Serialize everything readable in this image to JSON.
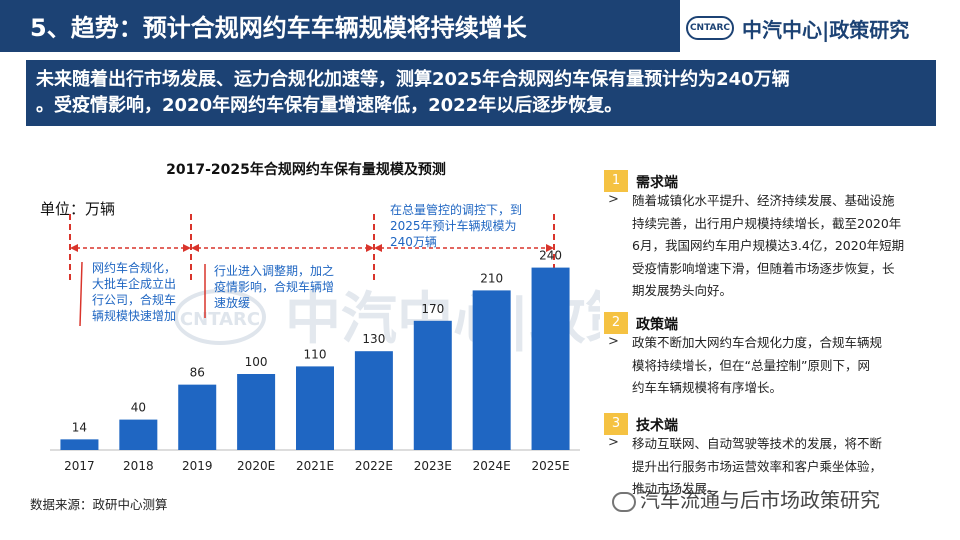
{
  "header": {
    "title": "5、趋势：预计合规网约车车辆规模将持续增长",
    "logo_badge": "CNTARC",
    "logo_text": "中汽中心|政策研究"
  },
  "summary": {
    "line1": "未来随着出行市场发展、运力合规化加速等，测算2025年合规网约车保有量预计约为240万辆",
    "line2": "。受疫情影响，2020年网约车保有量增速降低，2022年以后逐步恢复。"
  },
  "chart_data": {
    "type": "bar",
    "title": "2017-2025年合规网约车保有量规模及预测",
    "unit_label": "单位：万辆",
    "categories": [
      "2017",
      "2018",
      "2019",
      "2020E",
      "2021E",
      "2022E",
      "2023E",
      "2024E",
      "2025E"
    ],
    "values": [
      14,
      40,
      86,
      100,
      110,
      130,
      170,
      210,
      240
    ],
    "ylim": [
      0,
      250
    ],
    "bar_color": "#1f66c2",
    "watermark": "中汽中心|政策研究",
    "watermark_badge": "CNTARC",
    "annotations": [
      {
        "id": "phase1",
        "lines": [
          "网约车合规化，",
          "大批车企成立出",
          "行公司，合规车",
          "辆规模快速增加"
        ]
      },
      {
        "id": "phase2",
        "lines": [
          "行业进入调整期，加之",
          "疫情影响，合规车辆增",
          "速放缓"
        ]
      },
      {
        "id": "phase3",
        "lines": [
          "在总量管控的调控下，到",
          "2025年预计车辆规模为",
          "240万辆"
        ]
      }
    ]
  },
  "right_panel": {
    "sections": [
      {
        "num": "1",
        "heading": "需求端",
        "lines": [
          "随着城镇化水平提升、经济持续发展、基础设施",
          "持续完善，出行用户规模持续增长，截至2020年",
          "6月，我国网约车用户规模达3.4亿，2020年短期",
          "受疫情影响增速下滑，但随着市场逐步恢复，长",
          "期发展势头向好。"
        ]
      },
      {
        "num": "2",
        "heading": "政策端",
        "lines": [
          "政策不断加大网约车合规化力度，合规车辆规",
          "模将持续增长，但在“总量控制”原则下，网",
          "约车车辆规模将有序增长。"
        ]
      },
      {
        "num": "3",
        "heading": "技术端",
        "lines": [
          "移动互联网、自动驾驶等技术的发展，将不断",
          "提升出行服务市场运营效率和客户乘坐体验，",
          "推动市场发展。"
        ]
      }
    ]
  },
  "source": "数据来源：政研中心测算",
  "footer_watermark": "汽车流通与后市场政策研究"
}
